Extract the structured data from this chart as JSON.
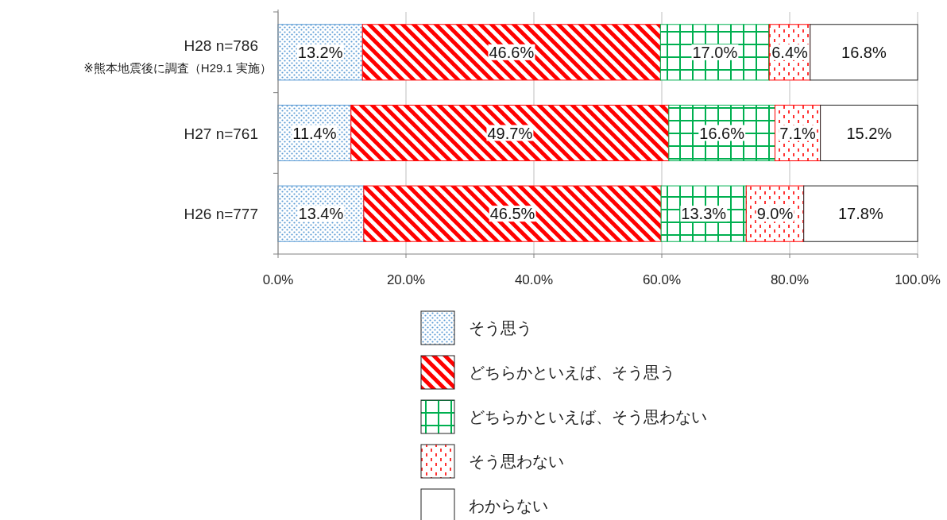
{
  "chart_data": {
    "type": "bar",
    "orientation": "horizontal",
    "stacked": true,
    "categories": [
      "H28  n=786",
      "H27  n=761",
      "H26  n=777"
    ],
    "series": [
      {
        "name": "そう思う",
        "color": "#5b9bd5",
        "values": [
          13.2,
          11.4,
          13.4
        ],
        "value_labels": [
          "13.2%",
          "11.4%",
          "13.4%"
        ]
      },
      {
        "name": "どちらかといえば、そう思う",
        "color": "#ff0000",
        "values": [
          46.6,
          49.7,
          46.5
        ],
        "value_labels": [
          "46.6%",
          "49.7%",
          "46.5%"
        ]
      },
      {
        "name": "どちらかといえば、そう思わない",
        "color": "#00b050",
        "values": [
          17.0,
          16.6,
          13.3
        ],
        "value_labels": [
          "17.0%",
          "16.6%",
          "13.3%"
        ]
      },
      {
        "name": "そう思わない",
        "color": "#ff0000",
        "values": [
          6.4,
          7.1,
          9.0
        ],
        "value_labels": [
          "6.4%",
          "7.1%",
          "9.0%"
        ]
      },
      {
        "name": "わからない",
        "color": "#ffffff",
        "values": [
          16.8,
          15.2,
          17.8
        ],
        "value_labels": [
          "16.8%",
          "15.2%",
          "17.8%"
        ]
      }
    ],
    "xlim": [
      0,
      100
    ],
    "xticks": [
      {
        "value": 0,
        "label": "0.0%"
      },
      {
        "value": 20,
        "label": "20.0%"
      },
      {
        "value": 40,
        "label": "40.0%"
      },
      {
        "value": 60,
        "label": "60.0%"
      },
      {
        "value": 80,
        "label": "80.0%"
      },
      {
        "value": 100,
        "label": "100.0%"
      }
    ],
    "grid": "x",
    "legend": "bottom",
    "annotations": [
      "※熊本地震後に調査（H29.1 実施）"
    ]
  }
}
